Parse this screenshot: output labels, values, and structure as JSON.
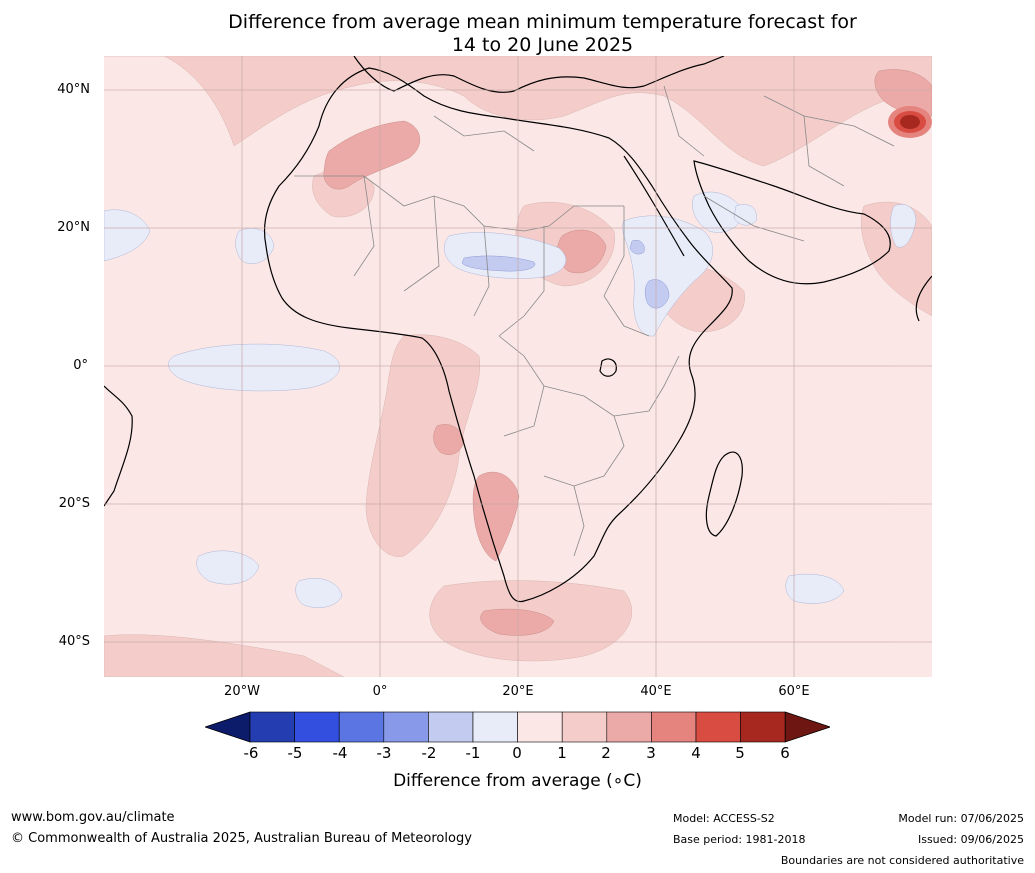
{
  "title": {
    "line1": "Difference from average mean minimum temperature forecast for",
    "line2": "14 to 20 June 2025"
  },
  "map": {
    "lat_labels": [
      "40°N",
      "20°N",
      "0°",
      "20°S",
      "40°S"
    ],
    "lon_labels": [
      "20°W",
      "0°",
      "20°E",
      "40°E",
      "60°E"
    ]
  },
  "colorbar": {
    "ticks": [
      "-6",
      "-5",
      "-4",
      "-3",
      "-2",
      "-1",
      "0",
      "1",
      "2",
      "3",
      "4",
      "5",
      "6"
    ],
    "colors": [
      "#0c1b6a",
      "#243db0",
      "#324fe0",
      "#5b75e3",
      "#8799e8",
      "#c3cbf0",
      "#e8ebf8",
      "#fbe8e6",
      "#f4cdca",
      "#ebaaa7",
      "#e5837e",
      "#d84c42",
      "#a6281f",
      "#6e1712"
    ],
    "label": "Difference from average (∘C)"
  },
  "footer": {
    "url": "www.bom.gov.au/climate",
    "copyright": "© Commonwealth of Australia 2025, Australian Bureau of Meteorology",
    "model": "Model: ACCESS-S2",
    "base_period": "Base period: 1981-2018",
    "model_run": "Model run: 07/06/2025",
    "issued": "Issued: 09/06/2025",
    "disclaimer": "Boundaries are not considered authoritative"
  }
}
